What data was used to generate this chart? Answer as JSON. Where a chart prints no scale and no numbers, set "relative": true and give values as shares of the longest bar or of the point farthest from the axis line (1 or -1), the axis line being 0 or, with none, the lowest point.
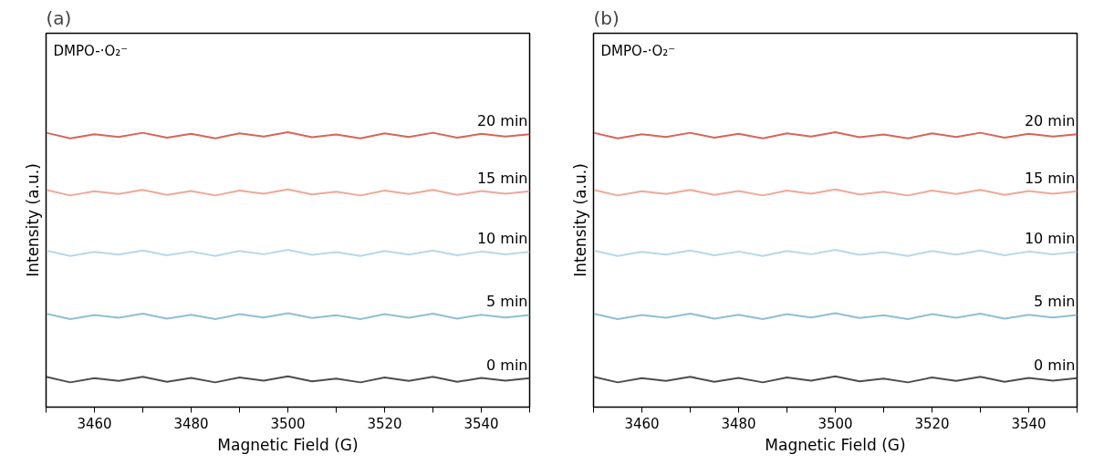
{
  "chart_data": [
    {
      "type": "line",
      "title": "(a)",
      "xlabel": "Magnetic Field (G)",
      "ylabel": "Intensity (a.u.)",
      "relative": true,
      "tick_labels": "x",
      "grid": false,
      "annotations": [
        "DMPO-·O₂⁻"
      ],
      "x": [
        3450,
        3455,
        3460,
        3465,
        3470,
        3475,
        3480,
        3485,
        3490,
        3495,
        3500,
        3505,
        3510,
        3515,
        3520,
        3525,
        3530,
        3535,
        3540,
        3545,
        3550
      ],
      "xlim": [
        3450,
        3550
      ],
      "xticks": [
        {
          "value": 3450,
          "label": null
        },
        3460,
        {
          "value": 3470,
          "label": null
        },
        3480,
        {
          "value": 3490,
          "label": null
        },
        3500,
        {
          "value": 3510,
          "label": null
        },
        3520,
        {
          "value": 3530,
          "label": null
        },
        3540,
        {
          "value": 3550,
          "label": null
        }
      ],
      "series": [
        {
          "name": "0 min",
          "color": "#4d4d4d",
          "values": [
            0.11,
            0.09,
            0.105,
            0.095,
            0.11,
            0.092,
            0.106,
            0.09,
            0.108,
            0.096,
            0.112,
            0.094,
            0.104,
            0.09,
            0.108,
            0.095,
            0.11,
            0.092,
            0.106,
            0.096,
            0.105
          ]
        },
        {
          "name": "5 min",
          "color": "#8fbfd6",
          "values": [
            0.34,
            0.32,
            0.335,
            0.325,
            0.34,
            0.322,
            0.336,
            0.32,
            0.338,
            0.326,
            0.342,
            0.324,
            0.334,
            0.32,
            0.338,
            0.325,
            0.34,
            0.322,
            0.336,
            0.326,
            0.335
          ]
        },
        {
          "name": "10 min",
          "color": "#b8d8e8",
          "values": [
            0.57,
            0.55,
            0.565,
            0.555,
            0.57,
            0.552,
            0.566,
            0.55,
            0.568,
            0.556,
            0.572,
            0.554,
            0.564,
            0.55,
            0.568,
            0.555,
            0.57,
            0.552,
            0.566,
            0.556,
            0.565
          ]
        },
        {
          "name": "15 min",
          "color": "#f0a898",
          "values": [
            0.79,
            0.77,
            0.785,
            0.775,
            0.79,
            0.772,
            0.786,
            0.77,
            0.788,
            0.776,
            0.792,
            0.774,
            0.784,
            0.77,
            0.788,
            0.775,
            0.79,
            0.772,
            0.786,
            0.776,
            0.785
          ]
        },
        {
          "name": "20 min",
          "color": "#d9645a",
          "values": [
            0.998,
            0.978,
            0.993,
            0.983,
            0.998,
            0.98,
            0.994,
            0.978,
            0.996,
            0.984,
            1.0,
            0.982,
            0.992,
            0.978,
            0.996,
            0.983,
            0.998,
            0.98,
            0.994,
            0.984,
            0.993
          ]
        }
      ]
    },
    {
      "type": "line",
      "title": "(b)",
      "xlabel": "Magnetic Field (G)",
      "ylabel": "Intensity (a.u.)",
      "relative": true,
      "tick_labels": "x",
      "grid": false,
      "annotations": [
        "DMPO-·O₂⁻"
      ],
      "x": [
        3450,
        3455,
        3460,
        3465,
        3470,
        3475,
        3480,
        3485,
        3490,
        3495,
        3500,
        3505,
        3510,
        3515,
        3520,
        3525,
        3530,
        3535,
        3540,
        3545,
        3550
      ],
      "xlim": [
        3450,
        3550
      ],
      "xticks": [
        {
          "value": 3450,
          "label": null
        },
        3460,
        {
          "value": 3470,
          "label": null
        },
        3480,
        {
          "value": 3490,
          "label": null
        },
        3500,
        {
          "value": 3510,
          "label": null
        },
        3520,
        {
          "value": 3530,
          "label": null
        },
        3540,
        {
          "value": 3550,
          "label": null
        }
      ],
      "series": [
        {
          "name": "0 min",
          "color": "#4d4d4d",
          "values": [
            0.11,
            0.09,
            0.105,
            0.095,
            0.11,
            0.092,
            0.106,
            0.09,
            0.108,
            0.096,
            0.112,
            0.094,
            0.104,
            0.09,
            0.108,
            0.095,
            0.11,
            0.092,
            0.106,
            0.096,
            0.105
          ]
        },
        {
          "name": "5 min",
          "color": "#8fbfd6",
          "values": [
            0.34,
            0.32,
            0.335,
            0.325,
            0.34,
            0.322,
            0.336,
            0.32,
            0.338,
            0.326,
            0.342,
            0.324,
            0.334,
            0.32,
            0.338,
            0.325,
            0.34,
            0.322,
            0.336,
            0.326,
            0.335
          ]
        },
        {
          "name": "10 min",
          "color": "#b8d8e8",
          "values": [
            0.57,
            0.55,
            0.565,
            0.555,
            0.57,
            0.552,
            0.566,
            0.55,
            0.568,
            0.556,
            0.572,
            0.554,
            0.564,
            0.55,
            0.568,
            0.555,
            0.57,
            0.552,
            0.566,
            0.556,
            0.565
          ]
        },
        {
          "name": "15 min",
          "color": "#f0a898",
          "values": [
            0.79,
            0.77,
            0.785,
            0.775,
            0.79,
            0.772,
            0.786,
            0.77,
            0.788,
            0.776,
            0.792,
            0.774,
            0.784,
            0.77,
            0.788,
            0.775,
            0.79,
            0.772,
            0.786,
            0.776,
            0.785
          ]
        },
        {
          "name": "20 min",
          "color": "#d9645a",
          "values": [
            0.998,
            0.978,
            0.993,
            0.983,
            0.998,
            0.98,
            0.994,
            0.978,
            0.996,
            0.984,
            1.0,
            0.982,
            0.992,
            0.978,
            0.996,
            0.983,
            0.998,
            0.98,
            0.994,
            0.984,
            0.993
          ]
        }
      ]
    }
  ]
}
